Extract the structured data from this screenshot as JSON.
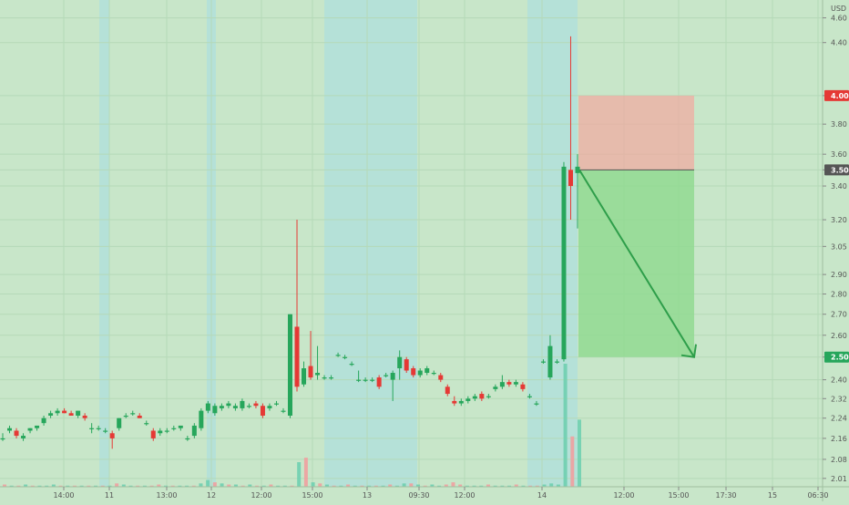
{
  "chart_data": {
    "type": "candlestick",
    "currency": "USD",
    "y_axis_ticks": [
      4.6,
      4.4,
      4.0,
      3.8,
      3.6,
      3.5,
      3.4,
      3.2,
      3.05,
      2.9,
      2.8,
      2.7,
      2.6,
      2.5,
      2.4,
      2.32,
      2.24,
      2.16,
      2.08,
      2.01
    ],
    "y_axis_tick_labels": [
      "4.60",
      "4.40",
      "4.00",
      "3.80",
      "3.60",
      "3.50",
      "3.40",
      "3.20",
      "3.05",
      "2.90",
      "2.80",
      "2.70",
      "2.60",
      "2.50",
      "2.40",
      "2.32",
      "2.24",
      "2.16",
      "2.08",
      "2.01"
    ],
    "price_markers": [
      {
        "label": "4.00",
        "value": 4.0,
        "color": "#e53935"
      },
      {
        "label": "3.50",
        "value": 3.5,
        "color": "#555555"
      },
      {
        "label": "2.50",
        "value": 2.5,
        "color": "#26a65b"
      }
    ],
    "x_axis_labels": [
      "14:00",
      "11",
      "13:00",
      "12",
      "12:00",
      "15:00",
      "13",
      "09:30",
      "12:00",
      "14",
      "12:00",
      "15:00",
      "17:30",
      "15",
      "06:30"
    ],
    "ylim": [
      1.98,
      4.75
    ],
    "log_scale": true,
    "grid": true,
    "up_color": "#26a65b",
    "down_color": "#e53935",
    "short_position": {
      "entry": 3.5,
      "stop_loss": 4.0,
      "take_profit": 2.5
    },
    "candles": [
      {
        "o": 2.16,
        "h": 2.18,
        "l": 2.15,
        "c": 2.16
      },
      {
        "o": 2.19,
        "h": 2.21,
        "l": 2.18,
        "c": 2.2
      },
      {
        "o": 2.19,
        "h": 2.2,
        "l": 2.16,
        "c": 2.17
      },
      {
        "o": 2.16,
        "h": 2.18,
        "l": 2.15,
        "c": 2.17
      },
      {
        "o": 2.19,
        "h": 2.2,
        "l": 2.18,
        "c": 2.2
      },
      {
        "o": 2.2,
        "h": 2.21,
        "l": 2.19,
        "c": 2.21
      },
      {
        "o": 2.22,
        "h": 2.25,
        "l": 2.21,
        "c": 2.24
      },
      {
        "o": 2.25,
        "h": 2.27,
        "l": 2.24,
        "c": 2.26
      },
      {
        "o": 2.26,
        "h": 2.28,
        "l": 2.25,
        "c": 2.27
      },
      {
        "o": 2.27,
        "h": 2.28,
        "l": 2.26,
        "c": 2.26
      },
      {
        "o": 2.26,
        "h": 2.27,
        "l": 2.25,
        "c": 2.25
      },
      {
        "o": 2.25,
        "h": 2.27,
        "l": 2.24,
        "c": 2.27
      },
      {
        "o": 2.25,
        "h": 2.26,
        "l": 2.23,
        "c": 2.24
      },
      {
        "o": 2.2,
        "h": 2.22,
        "l": 2.18,
        "c": 2.2
      },
      {
        "o": 2.2,
        "h": 2.21,
        "l": 2.19,
        "c": 2.2
      },
      {
        "o": 2.19,
        "h": 2.2,
        "l": 2.18,
        "c": 2.19
      },
      {
        "o": 2.18,
        "h": 2.19,
        "l": 2.12,
        "c": 2.16
      },
      {
        "o": 2.2,
        "h": 2.24,
        "l": 2.19,
        "c": 2.24
      },
      {
        "o": 2.25,
        "h": 2.26,
        "l": 2.24,
        "c": 2.25
      },
      {
        "o": 2.26,
        "h": 2.27,
        "l": 2.25,
        "c": 2.26
      },
      {
        "o": 2.25,
        "h": 2.26,
        "l": 2.24,
        "c": 2.24
      },
      {
        "o": 2.22,
        "h": 2.23,
        "l": 2.21,
        "c": 2.22
      },
      {
        "o": 2.19,
        "h": 2.2,
        "l": 2.15,
        "c": 2.16
      },
      {
        "o": 2.18,
        "h": 2.2,
        "l": 2.17,
        "c": 2.19
      },
      {
        "o": 2.19,
        "h": 2.2,
        "l": 2.18,
        "c": 2.19
      },
      {
        "o": 2.2,
        "h": 2.21,
        "l": 2.19,
        "c": 2.2
      },
      {
        "o": 2.2,
        "h": 2.21,
        "l": 2.19,
        "c": 2.21
      },
      {
        "o": 2.16,
        "h": 2.17,
        "l": 2.15,
        "c": 2.16
      },
      {
        "o": 2.17,
        "h": 2.22,
        "l": 2.16,
        "c": 2.21
      },
      {
        "o": 2.2,
        "h": 2.28,
        "l": 2.19,
        "c": 2.27
      },
      {
        "o": 2.27,
        "h": 2.31,
        "l": 2.26,
        "c": 2.3
      },
      {
        "o": 2.26,
        "h": 2.3,
        "l": 2.25,
        "c": 2.29
      },
      {
        "o": 2.28,
        "h": 2.3,
        "l": 2.27,
        "c": 2.29
      },
      {
        "o": 2.29,
        "h": 2.31,
        "l": 2.28,
        "c": 2.3
      },
      {
        "o": 2.28,
        "h": 2.3,
        "l": 2.27,
        "c": 2.29
      },
      {
        "o": 2.28,
        "h": 2.32,
        "l": 2.27,
        "c": 2.31
      },
      {
        "o": 2.29,
        "h": 2.3,
        "l": 2.28,
        "c": 2.29
      },
      {
        "o": 2.3,
        "h": 2.31,
        "l": 2.28,
        "c": 2.29
      },
      {
        "o": 2.29,
        "h": 2.3,
        "l": 2.24,
        "c": 2.25
      },
      {
        "o": 2.28,
        "h": 2.3,
        "l": 2.27,
        "c": 2.29
      },
      {
        "o": 2.3,
        "h": 2.31,
        "l": 2.29,
        "c": 2.3
      },
      {
        "o": 2.27,
        "h": 2.28,
        "l": 2.26,
        "c": 2.27
      },
      {
        "o": 2.25,
        "h": 2.7,
        "l": 2.24,
        "c": 2.7
      },
      {
        "o": 2.64,
        "h": 3.2,
        "l": 2.35,
        "c": 2.37
      },
      {
        "o": 2.38,
        "h": 2.48,
        "l": 2.37,
        "c": 2.45
      },
      {
        "o": 2.46,
        "h": 2.62,
        "l": 2.4,
        "c": 2.41
      },
      {
        "o": 2.42,
        "h": 2.55,
        "l": 2.4,
        "c": 2.43
      },
      {
        "o": 2.41,
        "h": 2.42,
        "l": 2.4,
        "c": 2.41
      },
      {
        "o": 2.41,
        "h": 2.42,
        "l": 2.4,
        "c": 2.41
      },
      {
        "o": 2.51,
        "h": 2.52,
        "l": 2.5,
        "c": 2.51
      },
      {
        "o": 2.5,
        "h": 2.51,
        "l": 2.49,
        "c": 2.5
      },
      {
        "o": 2.47,
        "h": 2.48,
        "l": 2.46,
        "c": 2.47
      },
      {
        "o": 2.4,
        "h": 2.44,
        "l": 2.39,
        "c": 2.4
      },
      {
        "o": 2.4,
        "h": 2.41,
        "l": 2.39,
        "c": 2.4
      },
      {
        "o": 2.4,
        "h": 2.41,
        "l": 2.39,
        "c": 2.4
      },
      {
        "o": 2.41,
        "h": 2.42,
        "l": 2.36,
        "c": 2.37
      },
      {
        "o": 2.42,
        "h": 2.43,
        "l": 2.41,
        "c": 2.42
      },
      {
        "o": 2.4,
        "h": 2.44,
        "l": 2.31,
        "c": 2.43
      },
      {
        "o": 2.45,
        "h": 2.53,
        "l": 2.4,
        "c": 2.5
      },
      {
        "o": 2.49,
        "h": 2.5,
        "l": 2.43,
        "c": 2.44
      },
      {
        "o": 2.45,
        "h": 2.46,
        "l": 2.41,
        "c": 2.42
      },
      {
        "o": 2.42,
        "h": 2.45,
        "l": 2.41,
        "c": 2.44
      },
      {
        "o": 2.43,
        "h": 2.46,
        "l": 2.42,
        "c": 2.45
      },
      {
        "o": 2.43,
        "h": 2.44,
        "l": 2.42,
        "c": 2.43
      },
      {
        "o": 2.42,
        "h": 2.43,
        "l": 2.39,
        "c": 2.4
      },
      {
        "o": 2.37,
        "h": 2.38,
        "l": 2.33,
        "c": 2.34
      },
      {
        "o": 2.31,
        "h": 2.33,
        "l": 2.29,
        "c": 2.3
      },
      {
        "o": 2.3,
        "h": 2.32,
        "l": 2.29,
        "c": 2.31
      },
      {
        "o": 2.31,
        "h": 2.33,
        "l": 2.3,
        "c": 2.32
      },
      {
        "o": 2.32,
        "h": 2.34,
        "l": 2.31,
        "c": 2.33
      },
      {
        "o": 2.34,
        "h": 2.35,
        "l": 2.31,
        "c": 2.32
      },
      {
        "o": 2.33,
        "h": 2.34,
        "l": 2.32,
        "c": 2.33
      },
      {
        "o": 2.36,
        "h": 2.38,
        "l": 2.35,
        "c": 2.37
      },
      {
        "o": 2.37,
        "h": 2.42,
        "l": 2.36,
        "c": 2.39
      },
      {
        "o": 2.39,
        "h": 2.4,
        "l": 2.37,
        "c": 2.38
      },
      {
        "o": 2.38,
        "h": 2.4,
        "l": 2.37,
        "c": 2.39
      },
      {
        "o": 2.38,
        "h": 2.39,
        "l": 2.35,
        "c": 2.36
      },
      {
        "o": 2.33,
        "h": 2.34,
        "l": 2.32,
        "c": 2.33
      },
      {
        "o": 2.3,
        "h": 2.31,
        "l": 2.29,
        "c": 2.3
      },
      {
        "o": 2.48,
        "h": 2.49,
        "l": 2.47,
        "c": 2.48
      },
      {
        "o": 2.41,
        "h": 2.6,
        "l": 2.4,
        "c": 2.55
      },
      {
        "o": 2.48,
        "h": 2.49,
        "l": 2.47,
        "c": 2.48
      },
      {
        "o": 2.49,
        "h": 3.55,
        "l": 2.48,
        "c": 3.52
      },
      {
        "o": 3.5,
        "h": 4.45,
        "l": 3.2,
        "c": 3.4
      },
      {
        "o": 3.48,
        "h": 3.6,
        "l": 3.15,
        "c": 3.52
      }
    ],
    "volumes": [
      {
        "v": 2,
        "up": false
      },
      {
        "v": 1,
        "up": true
      },
      {
        "v": 1,
        "up": false
      },
      {
        "v": 2,
        "up": true
      },
      {
        "v": 1,
        "up": false
      },
      {
        "v": 1,
        "up": true
      },
      {
        "v": 1,
        "up": true
      },
      {
        "v": 2,
        "up": true
      },
      {
        "v": 1,
        "up": false
      },
      {
        "v": 1,
        "up": true
      },
      {
        "v": 1,
        "up": false
      },
      {
        "v": 1,
        "up": true
      },
      {
        "v": 1,
        "up": false
      },
      {
        "v": 1,
        "up": true
      },
      {
        "v": 1,
        "up": false
      },
      {
        "v": 1,
        "up": true
      },
      {
        "v": 3,
        "up": false
      },
      {
        "v": 2,
        "up": true
      },
      {
        "v": 1,
        "up": true
      },
      {
        "v": 1,
        "up": false
      },
      {
        "v": 1,
        "up": true
      },
      {
        "v": 1,
        "up": false
      },
      {
        "v": 2,
        "up": false
      },
      {
        "v": 1,
        "up": true
      },
      {
        "v": 1,
        "up": false
      },
      {
        "v": 1,
        "up": true
      },
      {
        "v": 1,
        "up": true
      },
      {
        "v": 1,
        "up": false
      },
      {
        "v": 3,
        "up": true
      },
      {
        "v": 6,
        "up": true
      },
      {
        "v": 4,
        "up": false
      },
      {
        "v": 3,
        "up": true
      },
      {
        "v": 2,
        "up": false
      },
      {
        "v": 2,
        "up": true
      },
      {
        "v": 1,
        "up": false
      },
      {
        "v": 2,
        "up": true
      },
      {
        "v": 1,
        "up": false
      },
      {
        "v": 1,
        "up": true
      },
      {
        "v": 2,
        "up": false
      },
      {
        "v": 1,
        "up": true
      },
      {
        "v": 1,
        "up": true
      },
      {
        "v": 1,
        "up": false
      },
      {
        "v": 22,
        "up": true
      },
      {
        "v": 26,
        "up": false
      },
      {
        "v": 4,
        "up": true
      },
      {
        "v": 3,
        "up": false
      },
      {
        "v": 2,
        "up": true
      },
      {
        "v": 1,
        "up": false
      },
      {
        "v": 1,
        "up": true
      },
      {
        "v": 2,
        "up": false
      },
      {
        "v": 1,
        "up": true
      },
      {
        "v": 1,
        "up": false
      },
      {
        "v": 1,
        "up": true
      },
      {
        "v": 1,
        "up": false
      },
      {
        "v": 1,
        "up": true
      },
      {
        "v": 2,
        "up": false
      },
      {
        "v": 1,
        "up": true
      },
      {
        "v": 3,
        "up": true
      },
      {
        "v": 3,
        "up": false
      },
      {
        "v": 2,
        "up": true
      },
      {
        "v": 1,
        "up": false
      },
      {
        "v": 2,
        "up": true
      },
      {
        "v": 1,
        "up": true
      },
      {
        "v": 2,
        "up": false
      },
      {
        "v": 4,
        "up": false
      },
      {
        "v": 2,
        "up": false
      },
      {
        "v": 1,
        "up": true
      },
      {
        "v": 1,
        "up": true
      },
      {
        "v": 1,
        "up": true
      },
      {
        "v": 2,
        "up": false
      },
      {
        "v": 1,
        "up": true
      },
      {
        "v": 1,
        "up": true
      },
      {
        "v": 1,
        "up": true
      },
      {
        "v": 2,
        "up": false
      },
      {
        "v": 1,
        "up": true
      },
      {
        "v": 1,
        "up": false
      },
      {
        "v": 1,
        "up": false
      },
      {
        "v": 2,
        "up": true
      },
      {
        "v": 3,
        "up": true
      },
      {
        "v": 2,
        "up": true
      },
      {
        "v": 110,
        "up": true
      },
      {
        "v": 45,
        "up": false
      },
      {
        "v": 60,
        "up": true
      }
    ]
  }
}
